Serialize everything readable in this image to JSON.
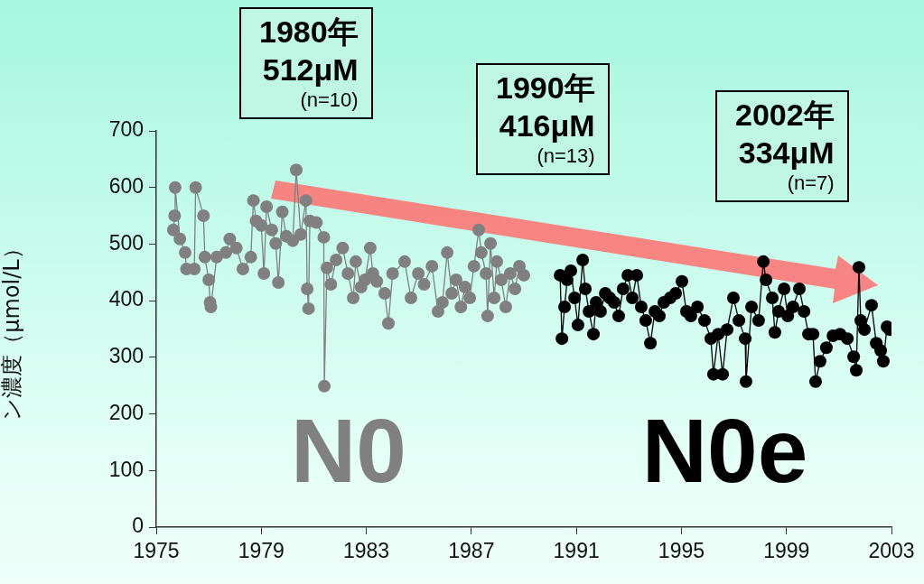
{
  "chart_data": {
    "type": "line",
    "ylabel": "ン濃度（μmol/L）",
    "xlim": [
      1975,
      2003
    ],
    "xticks": [
      1975,
      1979,
      1983,
      1987,
      1991,
      1995,
      1999,
      2003
    ],
    "ylim": [
      0,
      700
    ],
    "yticks": [
      0,
      100,
      200,
      300,
      400,
      500,
      600,
      700
    ],
    "grid": false,
    "legend": false,
    "marker": "circle",
    "line_style": "solid",
    "annotations": [
      "1980年\n512μM\n(n=10)",
      "1990年\n416μM\n(n=13)",
      "2002年\n334μM\n(n=7)"
    ],
    "series": [
      {
        "name": "N0",
        "color": "#808080",
        "x": [
          1975.65,
          1975.7,
          1975.72,
          1975.9,
          1976.1,
          1976.15,
          1976.45,
          1976.5,
          1976.8,
          1976.85,
          1977.0,
          1977.05,
          1977.08,
          1977.3,
          1977.65,
          1977.8,
          1978.05,
          1978.3,
          1978.6,
          1978.7,
          1978.8,
          1979.0,
          1979.1,
          1979.2,
          1979.4,
          1979.55,
          1979.65,
          1979.8,
          1979.95,
          1980.2,
          1980.33,
          1980.5,
          1980.7,
          1980.75,
          1980.8,
          1980.85,
          1981.1,
          1981.38,
          1981.4,
          1981.5,
          1981.65,
          1981.85,
          1982.1,
          1982.3,
          1982.5,
          1982.6,
          1982.8,
          1982.95,
          1983.15,
          1983.25,
          1983.4,
          1983.7,
          1983.84,
          1984.0,
          1984.46,
          1984.7,
          1984.98,
          1985.2,
          1985.5,
          1985.73,
          1985.9,
          1986.08,
          1986.25,
          1986.42,
          1986.6,
          1986.76,
          1986.94,
          1987.1,
          1987.28,
          1987.38,
          1987.56,
          1987.62,
          1987.73,
          1987.87,
          1987.97,
          1988.14,
          1988.31,
          1988.48,
          1988.66,
          1988.83,
          1989.0
        ],
        "values": [
          525,
          550,
          600,
          509,
          485,
          456,
          456,
          600,
          550,
          477,
          437,
          397,
          389,
          477,
          485,
          509,
          493,
          456,
          477,
          577,
          541,
          533,
          448,
          566,
          525,
          501,
          432,
          557,
          514,
          506,
          631,
          517,
          577,
          421,
          386,
          541,
          538,
          512,
          249,
          458,
          429,
          472,
          493,
          448,
          405,
          469,
          424,
          437,
          493,
          448,
          434,
          413,
          360,
          448,
          469,
          405,
          448,
          429,
          461,
          381,
          397,
          485,
          413,
          437,
          389,
          424,
          405,
          461,
          525,
          485,
          448,
          373,
          501,
          405,
          469,
          437,
          389,
          448,
          421,
          461,
          445
        ]
      },
      {
        "name": "N0e",
        "color": "#000000",
        "x": [
          1990.38,
          1990.45,
          1990.55,
          1990.65,
          1990.79,
          1990.93,
          1991.06,
          1991.24,
          1991.34,
          1991.48,
          1991.65,
          1991.75,
          1991.92,
          1992.1,
          1992.27,
          1992.44,
          1992.61,
          1992.78,
          1992.96,
          1993.13,
          1993.3,
          1993.47,
          1993.64,
          1993.82,
          1993.99,
          1994.16,
          1994.33,
          1994.57,
          1994.78,
          1995.02,
          1995.19,
          1995.36,
          1995.61,
          1995.88,
          1996.12,
          1996.22,
          1996.4,
          1996.57,
          1996.74,
          1996.98,
          1997.19,
          1997.43,
          1997.46,
          1997.67,
          1997.94,
          1998.12,
          1998.22,
          1998.46,
          1998.56,
          1998.7,
          1998.91,
          1999.05,
          1999.25,
          1999.49,
          1999.67,
          1999.84,
          2000.01,
          2000.11,
          2000.28,
          2000.52,
          2000.77,
          2001.04,
          2001.32,
          2001.56,
          2001.66,
          2001.76,
          2001.83,
          2001.97,
          2002.24,
          2002.42,
          2002.59,
          2002.69,
          2002.83,
          2002.93
        ],
        "values": [
          445,
          333,
          389,
          437,
          453,
          405,
          357,
          472,
          421,
          381,
          341,
          397,
          381,
          413,
          405,
          397,
          373,
          421,
          445,
          405,
          445,
          389,
          365,
          325,
          381,
          373,
          397,
          405,
          413,
          434,
          381,
          373,
          389,
          365,
          333,
          270,
          341,
          270,
          349,
          405,
          365,
          333,
          257,
          389,
          365,
          469,
          437,
          405,
          344,
          381,
          421,
          373,
          389,
          421,
          381,
          341,
          341,
          257,
          293,
          317,
          338,
          341,
          333,
          301,
          277,
          459,
          365,
          349,
          392,
          325,
          312,
          293,
          354,
          349
        ]
      }
    ]
  }
}
